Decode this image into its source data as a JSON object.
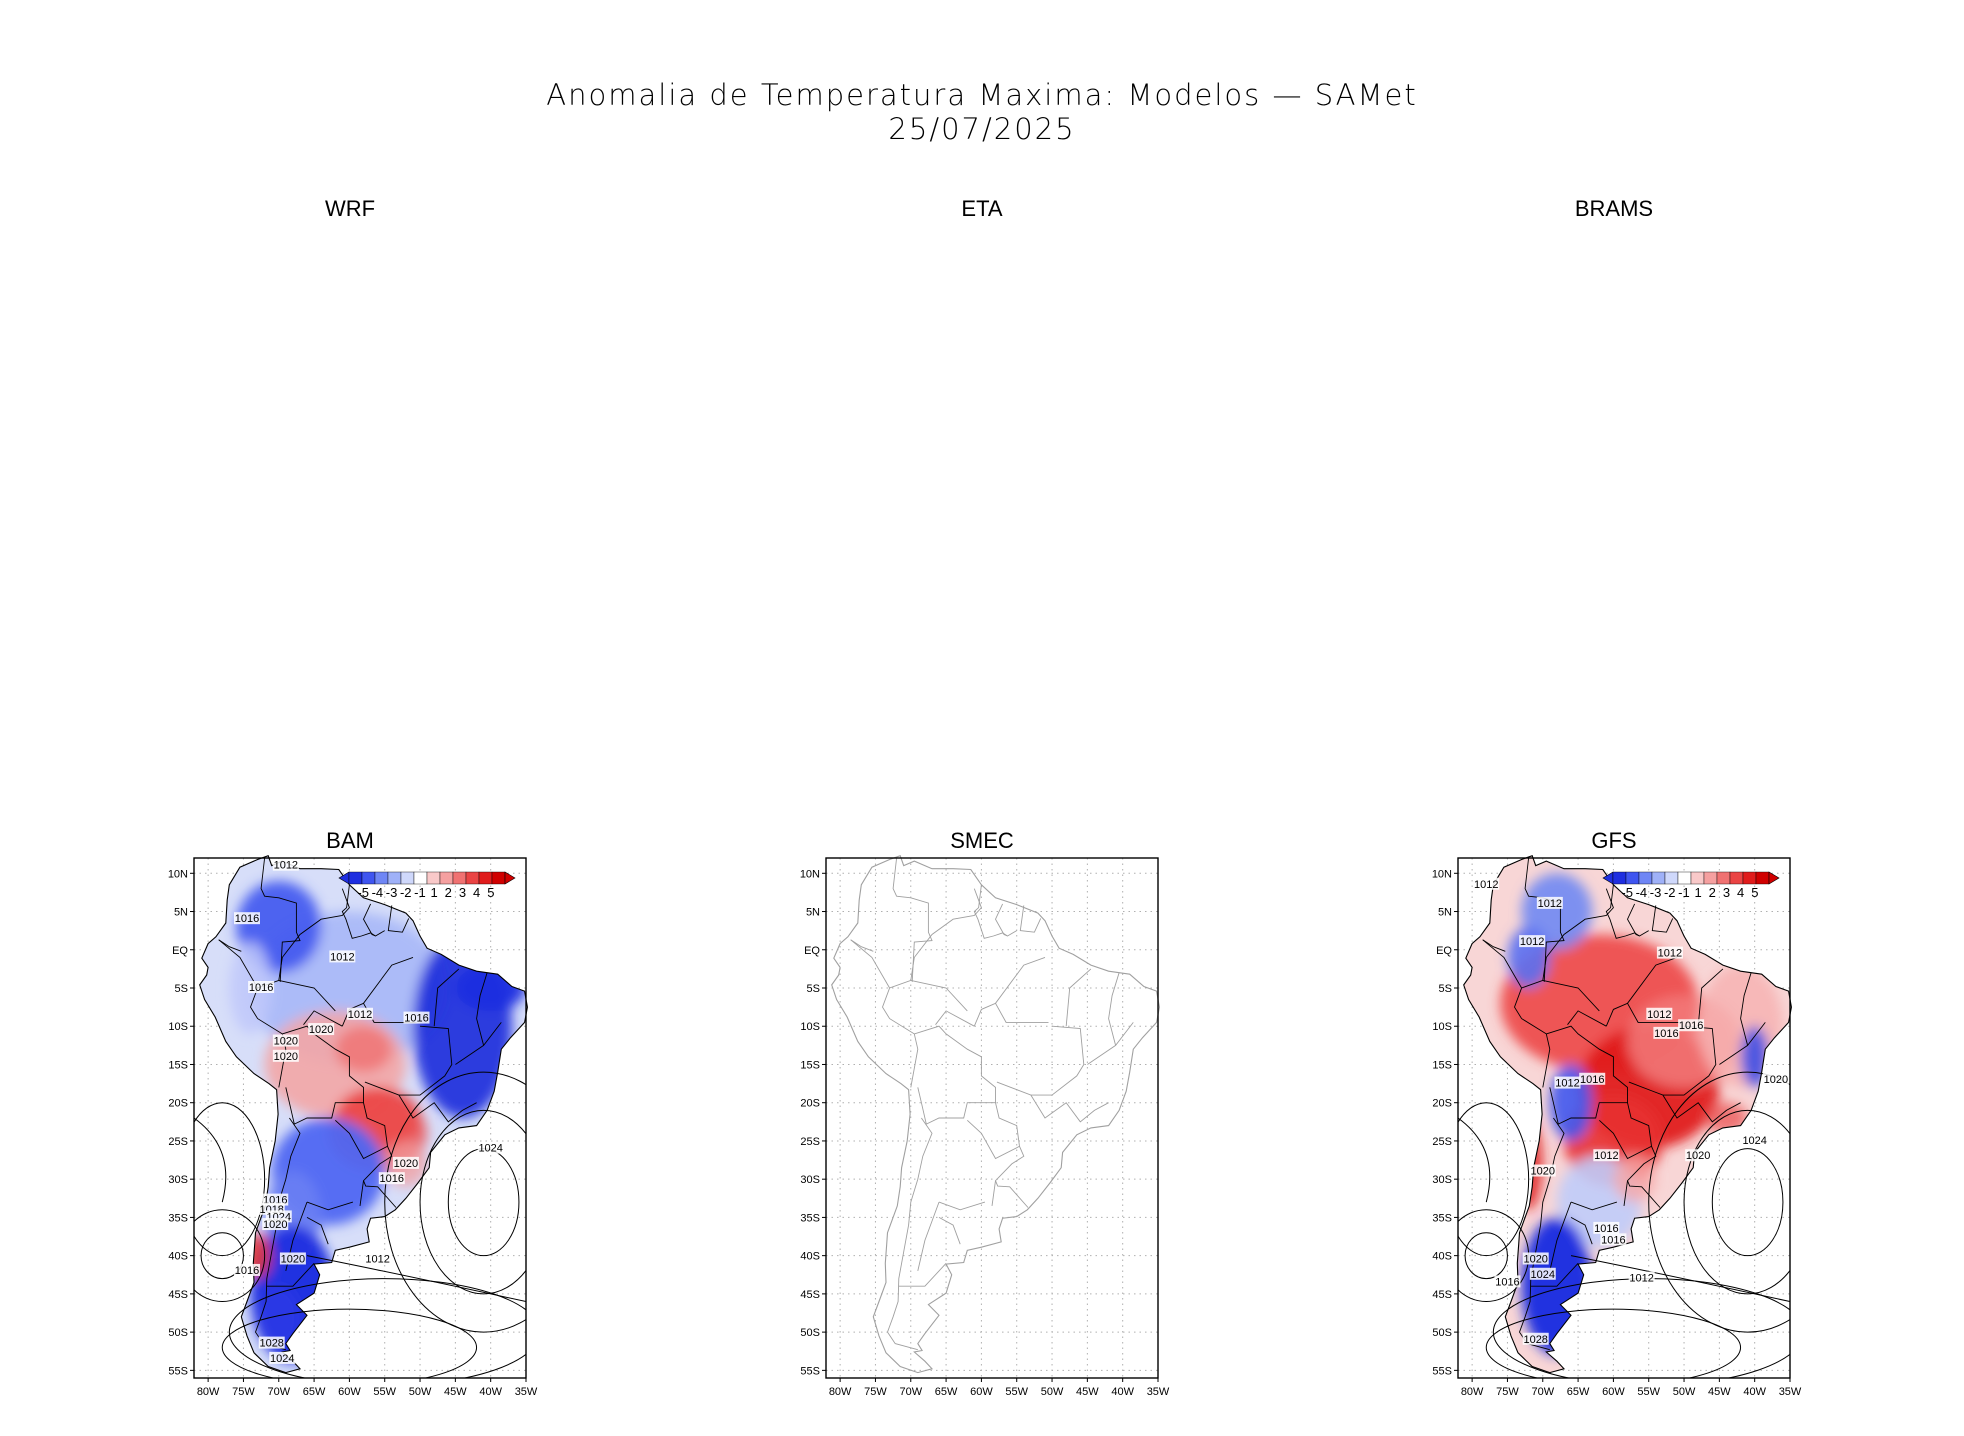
{
  "figure": {
    "title": "Anomalia de Temperatura Maxima: Modelos — SAMet",
    "date": "25/07/2025"
  },
  "panels": [
    {
      "id": "wrf",
      "label": "WRF",
      "has_map": false
    },
    {
      "id": "eta",
      "label": "ETA",
      "has_map": false
    },
    {
      "id": "brams",
      "label": "BRAMS",
      "has_map": false
    },
    {
      "id": "bam",
      "label": "BAM",
      "has_map": true,
      "field": "mixed-cold",
      "isobars": [
        "1012",
        "1016",
        "1012",
        "1012",
        "1016",
        "1016",
        "1020",
        "1020",
        "1020",
        "1024",
        "1020",
        "1016",
        "1016",
        "1018",
        "1024",
        "1020",
        "1012",
        "1020",
        "1016",
        "1028",
        "1024"
      ]
    },
    {
      "id": "smec",
      "label": "SMEC",
      "has_map": true,
      "field": "none",
      "isobars": []
    },
    {
      "id": "gfs",
      "label": "GFS",
      "has_map": true,
      "field": "warm",
      "isobars": [
        "1012",
        "1012",
        "1012",
        "1012",
        "1016",
        "1012",
        "1016",
        "1020",
        "1016",
        "1012",
        "1020",
        "1024",
        "1012",
        "1020",
        "1016",
        "1016",
        "1020",
        "1024",
        "1016",
        "1012",
        "1028"
      ]
    }
  ],
  "axes": {
    "y_ticks": [
      "10N",
      "5N",
      "EQ",
      "5S",
      "10S",
      "15S",
      "20S",
      "25S",
      "30S",
      "35S",
      "40S",
      "45S",
      "50S",
      "55S"
    ],
    "x_ticks": [
      "80W",
      "75W",
      "70W",
      "65W",
      "60W",
      "55W",
      "50W",
      "45W",
      "40W",
      "35W"
    ]
  },
  "colorbar": {
    "labels": [
      "-5",
      "-4",
      "-3",
      "-2",
      "-1",
      "1",
      "2",
      "3",
      "4",
      "5"
    ],
    "colors": [
      "#1f2fe0",
      "#3f55f0",
      "#6f86f5",
      "#9fb1f8",
      "#cfd8fb",
      "#ffffff",
      "#f9c9c9",
      "#f5a0a0",
      "#f07272",
      "#ea4444",
      "#e01c1c",
      "#d00000"
    ]
  }
}
